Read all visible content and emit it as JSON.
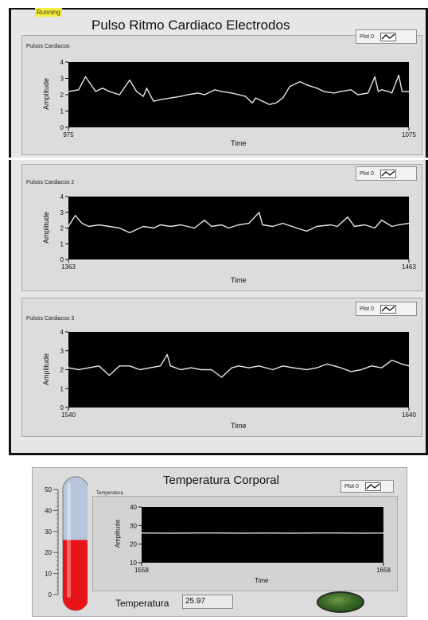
{
  "window": {
    "status": "Running",
    "title": "Pulso Ritmo Cardiaco Electrodos"
  },
  "charts": [
    {
      "label": "Pulsos Cardiacos",
      "legend": "Plot 0",
      "xlabel": "Time",
      "ylabel": "Amplitude",
      "x_min_label": "975",
      "x_max_label": "1075",
      "y_ticks": [
        "0",
        "1",
        "2",
        "3",
        "4"
      ]
    },
    {
      "label": "Pulsos Cardiacos 2",
      "legend": "Plot 0",
      "xlabel": "Time",
      "ylabel": "Amplitude",
      "x_min_label": "1363",
      "x_max_label": "1463",
      "y_ticks": [
        "0",
        "1",
        "2",
        "3",
        "4"
      ]
    },
    {
      "label": "Pulsos Cardiacos 3",
      "legend": "Plot 0",
      "xlabel": "Time",
      "ylabel": "Amplitude",
      "x_min_label": "1540",
      "x_max_label": "1640",
      "y_ticks": [
        "0",
        "1",
        "2",
        "3",
        "4"
      ]
    }
  ],
  "temperature": {
    "title": "Temperatura Corporal",
    "chart_label": "Temperatura",
    "legend": "Plot 0",
    "xlabel": "Time",
    "ylabel": "Amplitude",
    "x_min_label": "1558",
    "x_max_label": "1658",
    "y_ticks": [
      "10",
      "20",
      "30",
      "40"
    ],
    "thermometer_ticks": [
      "0",
      "10",
      "20",
      "30",
      "40",
      "50"
    ],
    "thermometer_level": 25.97,
    "value_label": "Temperatura",
    "value": "25.97",
    "led_color": "#3a6a25"
  },
  "colors": {
    "plot_bg": "#000000",
    "trace": "#e6e6e6",
    "panel_bg": "#dcdcdc"
  },
  "chart_data": [
    {
      "type": "line",
      "title": "Pulsos Cardiacos",
      "xlabel": "Time",
      "ylabel": "Amplitude",
      "xlim": [
        975,
        1075
      ],
      "ylim": [
        0,
        4
      ],
      "grid": false,
      "legend": "top-right",
      "series": [
        {
          "name": "Plot 0",
          "x": [
            975,
            978,
            980,
            983,
            985,
            987,
            990,
            993,
            995,
            997,
            998,
            1000,
            1002,
            1005,
            1008,
            1010,
            1013,
            1015,
            1018,
            1020,
            1023,
            1025,
            1027,
            1029,
            1030,
            1032,
            1034,
            1036,
            1038,
            1040,
            1043,
            1045,
            1048,
            1050,
            1053,
            1055,
            1058,
            1060,
            1063,
            1065,
            1066,
            1067,
            1069,
            1070,
            1072,
            1073,
            1075
          ],
          "y": [
            2.2,
            2.3,
            3.1,
            2.2,
            2.4,
            2.2,
            2.0,
            2.9,
            2.2,
            1.9,
            2.4,
            1.6,
            1.7,
            1.8,
            1.9,
            2.0,
            2.1,
            2.0,
            2.3,
            2.2,
            2.1,
            2.0,
            1.9,
            1.5,
            1.8,
            1.6,
            1.4,
            1.5,
            1.8,
            2.5,
            2.8,
            2.6,
            2.4,
            2.2,
            2.1,
            2.2,
            2.3,
            2.0,
            2.1,
            3.1,
            2.2,
            2.3,
            2.2,
            2.1,
            3.2,
            2.2,
            2.2
          ]
        }
      ]
    },
    {
      "type": "line",
      "title": "Pulsos Cardiacos 2",
      "xlabel": "Time",
      "ylabel": "Amplitude",
      "xlim": [
        1363,
        1463
      ],
      "ylim": [
        0,
        4
      ],
      "grid": false,
      "legend": "top-right",
      "series": [
        {
          "name": "Plot 0",
          "x": [
            1363,
            1365,
            1367,
            1369,
            1372,
            1375,
            1378,
            1381,
            1385,
            1388,
            1390,
            1393,
            1396,
            1400,
            1403,
            1405,
            1408,
            1410,
            1413,
            1416,
            1419,
            1420,
            1423,
            1426,
            1430,
            1433,
            1436,
            1440,
            1442,
            1445,
            1447,
            1450,
            1453,
            1455,
            1458,
            1460,
            1463
          ],
          "y": [
            2.1,
            2.8,
            2.3,
            2.1,
            2.2,
            2.1,
            2.0,
            1.7,
            2.1,
            2.0,
            2.2,
            2.1,
            2.2,
            2.0,
            2.5,
            2.1,
            2.2,
            2.0,
            2.2,
            2.3,
            3.0,
            2.2,
            2.1,
            2.3,
            2.0,
            1.8,
            2.1,
            2.2,
            2.1,
            2.7,
            2.1,
            2.2,
            2.0,
            2.5,
            2.1,
            2.2,
            2.3
          ]
        }
      ]
    },
    {
      "type": "line",
      "title": "Pulsos Cardiacos 3",
      "xlabel": "Time",
      "ylabel": "Amplitude",
      "xlim": [
        1540,
        1640
      ],
      "ylim": [
        0,
        4
      ],
      "grid": false,
      "legend": "top-right",
      "series": [
        {
          "name": "Plot 0",
          "x": [
            1540,
            1543,
            1546,
            1549,
            1552,
            1555,
            1558,
            1561,
            1564,
            1567,
            1569,
            1570,
            1573,
            1576,
            1579,
            1582,
            1585,
            1588,
            1590,
            1593,
            1596,
            1600,
            1603,
            1606,
            1610,
            1613,
            1616,
            1620,
            1623,
            1626,
            1629,
            1632,
            1635,
            1638,
            1640
          ],
          "y": [
            2.1,
            2.0,
            2.1,
            2.2,
            1.7,
            2.2,
            2.2,
            2.0,
            2.1,
            2.2,
            2.8,
            2.2,
            2.0,
            2.1,
            2.0,
            2.0,
            1.6,
            2.1,
            2.2,
            2.1,
            2.2,
            2.0,
            2.2,
            2.1,
            2.0,
            2.1,
            2.3,
            2.1,
            1.9,
            2.0,
            2.2,
            2.1,
            2.5,
            2.3,
            2.2
          ]
        }
      ]
    },
    {
      "type": "line",
      "title": "Temperatura",
      "xlabel": "Time",
      "ylabel": "Amplitude",
      "xlim": [
        1558,
        1658
      ],
      "ylim": [
        10,
        40
      ],
      "grid": false,
      "legend": "top-right",
      "series": [
        {
          "name": "Plot 0",
          "x": [
            1558,
            1570,
            1580,
            1590,
            1600,
            1610,
            1620,
            1630,
            1640,
            1650,
            1658
          ],
          "y": [
            26.0,
            25.9,
            26.0,
            26.0,
            25.9,
            26.0,
            25.9,
            26.0,
            26.0,
            25.9,
            26.0
          ]
        }
      ]
    }
  ]
}
